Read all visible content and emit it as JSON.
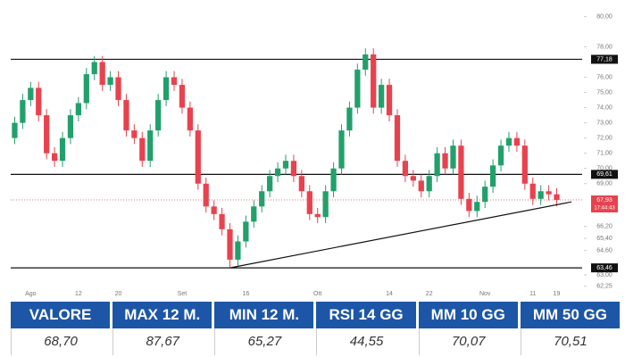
{
  "chart_data": {
    "type": "candlestick",
    "categories": [
      null,
      null,
      "Ago",
      null,
      null,
      null,
      null,
      null,
      "12",
      null,
      null,
      null,
      null,
      "20",
      null,
      null,
      null,
      null,
      null,
      null,
      null,
      "Set",
      null,
      null,
      null,
      null,
      null,
      null,
      null,
      "16",
      null,
      null,
      null,
      null,
      null,
      null,
      null,
      null,
      "Ott",
      null,
      null,
      null,
      null,
      null,
      null,
      null,
      null,
      "14",
      null,
      null,
      null,
      null,
      "22",
      null,
      null,
      null,
      null,
      null,
      null,
      "Nov",
      null,
      null,
      null,
      null,
      null,
      "11",
      null,
      null,
      "19"
    ],
    "open": [
      72.0,
      73.0,
      74.5,
      75.3,
      73.5,
      71.0,
      70.5,
      72.0,
      73.5,
      74.3,
      76.2,
      77.0,
      75.5,
      76.0,
      74.5,
      72.5,
      72.0,
      70.5,
      72.5,
      74.5,
      76.0,
      75.5,
      74.0,
      72.5,
      69.0,
      67.5,
      67.0,
      66.0,
      64.0,
      65.2,
      66.5,
      67.5,
      68.5,
      69.5,
      70.0,
      70.5,
      69.5,
      68.5,
      67.0,
      66.8,
      68.5,
      70.0,
      72.5,
      74.0,
      76.5,
      77.5,
      74.0,
      75.5,
      73.5,
      70.5,
      69.5,
      69.2,
      68.5,
      69.5,
      71.0,
      70.0,
      71.5,
      68.0,
      67.2,
      67.8,
      68.8,
      70.2,
      71.5,
      72.0,
      71.5,
      69.0,
      68.0,
      68.5,
      68.3
    ],
    "high": [
      73.4,
      74.9,
      75.7,
      75.7,
      73.9,
      71.4,
      72.4,
      73.9,
      74.7,
      76.6,
      77.4,
      77.4,
      76.4,
      76.4,
      74.9,
      72.9,
      72.4,
      72.9,
      74.9,
      76.4,
      76.4,
      75.9,
      74.4,
      72.9,
      69.4,
      67.9,
      67.4,
      66.4,
      65.6,
      66.9,
      67.9,
      68.9,
      69.9,
      70.4,
      70.9,
      70.9,
      69.9,
      68.9,
      67.4,
      68.9,
      70.4,
      72.9,
      74.4,
      76.9,
      77.9,
      77.9,
      75.9,
      75.9,
      73.9,
      70.9,
      69.9,
      69.6,
      69.9,
      71.4,
      71.4,
      71.9,
      71.9,
      68.4,
      68.2,
      69.2,
      70.6,
      71.9,
      72.4,
      72.4,
      71.9,
      69.4,
      68.9,
      68.9,
      68.7
    ],
    "low": [
      71.6,
      72.6,
      74.1,
      73.1,
      70.6,
      70.1,
      70.1,
      71.6,
      73.1,
      73.9,
      75.8,
      75.1,
      75.1,
      74.1,
      72.1,
      71.6,
      70.1,
      70.1,
      72.1,
      74.1,
      75.1,
      73.6,
      72.1,
      68.6,
      67.1,
      66.6,
      65.6,
      63.46,
      63.6,
      64.8,
      66.1,
      67.1,
      68.1,
      69.1,
      69.6,
      69.1,
      68.1,
      66.6,
      66.4,
      66.4,
      68.1,
      69.6,
      72.1,
      73.6,
      76.1,
      73.6,
      73.6,
      73.1,
      70.1,
      69.1,
      68.8,
      68.1,
      68.1,
      69.1,
      69.6,
      69.6,
      67.6,
      66.8,
      66.8,
      67.4,
      68.4,
      69.8,
      71.1,
      71.1,
      68.6,
      67.6,
      67.6,
      67.9,
      67.5
    ],
    "close": [
      73.0,
      74.5,
      75.3,
      73.5,
      71.0,
      70.5,
      72.0,
      73.5,
      74.3,
      76.2,
      77.0,
      75.5,
      76.0,
      74.5,
      72.5,
      72.0,
      70.5,
      72.5,
      74.5,
      76.0,
      75.5,
      74.0,
      72.5,
      69.0,
      67.5,
      67.0,
      66.0,
      64.0,
      65.2,
      66.5,
      67.5,
      68.5,
      69.5,
      70.0,
      70.5,
      69.5,
      68.5,
      67.0,
      66.8,
      68.5,
      70.0,
      72.5,
      74.0,
      76.5,
      77.5,
      74.0,
      75.5,
      73.5,
      70.5,
      69.5,
      69.2,
      68.5,
      69.5,
      71.0,
      70.0,
      71.5,
      68.0,
      67.2,
      67.8,
      68.8,
      70.2,
      71.5,
      72.0,
      71.5,
      69.0,
      68.0,
      68.5,
      68.3,
      67.93
    ],
    "up_color": "#22a06b",
    "down_color": "#e8424e",
    "ylim": [
      62.0,
      80.2
    ],
    "yticks": [
      {
        "value": 80,
        "label": "80,00"
      },
      {
        "value": 78,
        "label": "78,00"
      },
      {
        "value": 76,
        "label": "76,00"
      },
      {
        "value": 75,
        "label": "75,00"
      },
      {
        "value": 74,
        "label": "74,00"
      },
      {
        "value": 73,
        "label": "73,00"
      },
      {
        "value": 72,
        "label": "72,00"
      },
      {
        "value": 71,
        "label": "71,00"
      },
      {
        "value": 70,
        "label": "70,00"
      },
      {
        "value": 69,
        "label": "69,00"
      },
      {
        "value": 66.2,
        "label": "66,20"
      },
      {
        "value": 65.4,
        "label": "65,40"
      },
      {
        "value": 64.6,
        "label": "64,60"
      },
      {
        "value": 63,
        "label": "63,00"
      },
      {
        "value": 62.25,
        "label": "62,25"
      }
    ],
    "levels": [
      {
        "value": 77.18,
        "label": "77,18"
      },
      {
        "value": 69.61,
        "label": "69,61"
      },
      {
        "value": 63.46,
        "label": "63,46"
      }
    ],
    "trend_line": [
      63.46,
      67.8
    ],
    "last_price": {
      "value": 67.93,
      "label": "67,93",
      "time": "17:44:43"
    }
  },
  "table": {
    "header": [
      "VALORE",
      "MAX 12 M.",
      "MIN 12 M.",
      "RSI 14 GG",
      "MM 10 GG",
      "MM 50 GG"
    ],
    "row": [
      "68,70",
      "87,67",
      "65,27",
      "44,55",
      "70,07",
      "70,51"
    ]
  }
}
